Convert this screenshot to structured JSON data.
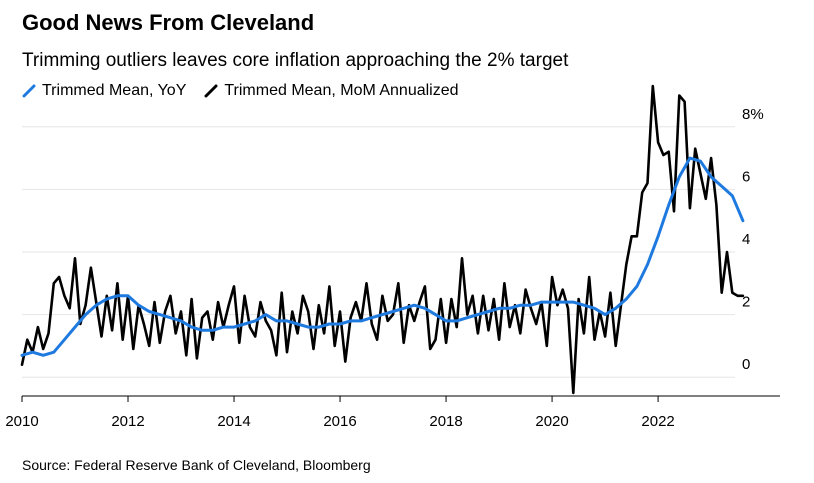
{
  "title": "Good News From Cleveland",
  "subtitle": "Trimming outliers leaves core inflation approaching the 2% target",
  "source": "Source: Federal Reserve Bank of Cleveland, Bloomberg",
  "colors": {
    "yoy": "#1f7ae0",
    "mom": "#000000",
    "grid": "#e6e6e6"
  },
  "chart_data": {
    "type": "line",
    "grid": true,
    "y_axis_side": "right",
    "xlim": [
      2010,
      2024.3
    ],
    "ylim": [
      -0.6,
      8.6
    ],
    "x_ticks": [
      2010,
      2012,
      2014,
      2016,
      2018,
      2020,
      2022
    ],
    "x_tick_labels": [
      "2010",
      "2012",
      "2014",
      "2016",
      "2018",
      "2020",
      "2022"
    ],
    "y_ticks": [
      0,
      2,
      4,
      6,
      8
    ],
    "y_tick_labels": [
      "0",
      "2",
      "4",
      "6",
      "8%"
    ],
    "series": [
      {
        "name": "Trimmed Mean, YoY",
        "color": "#1f7ae0",
        "x": [
          2010.0,
          2010.2,
          2010.4,
          2010.6,
          2010.8,
          2011.0,
          2011.2,
          2011.4,
          2011.6,
          2011.8,
          2012.0,
          2012.2,
          2012.4,
          2012.6,
          2012.8,
          2013.0,
          2013.2,
          2013.4,
          2013.6,
          2013.8,
          2014.0,
          2014.2,
          2014.4,
          2014.6,
          2014.8,
          2015.0,
          2015.2,
          2015.4,
          2015.6,
          2015.8,
          2016.0,
          2016.2,
          2016.4,
          2016.6,
          2016.8,
          2017.0,
          2017.2,
          2017.4,
          2017.6,
          2017.8,
          2018.0,
          2018.2,
          2018.4,
          2018.6,
          2018.8,
          2019.0,
          2019.2,
          2019.4,
          2019.6,
          2019.8,
          2020.0,
          2020.2,
          2020.4,
          2020.6,
          2020.8,
          2021.0,
          2021.2,
          2021.4,
          2021.6,
          2021.8,
          2022.0,
          2022.2,
          2022.4,
          2022.6,
          2022.8,
          2023.0,
          2023.2,
          2023.4,
          2023.6
        ],
        "values": [
          0.7,
          0.8,
          0.7,
          0.8,
          1.2,
          1.6,
          2.0,
          2.3,
          2.5,
          2.6,
          2.6,
          2.3,
          2.1,
          2.0,
          1.9,
          1.8,
          1.6,
          1.5,
          1.5,
          1.6,
          1.6,
          1.7,
          1.8,
          2.0,
          1.8,
          1.8,
          1.7,
          1.6,
          1.6,
          1.7,
          1.7,
          1.8,
          1.8,
          1.9,
          2.0,
          2.1,
          2.2,
          2.3,
          2.2,
          2.0,
          1.8,
          1.8,
          1.9,
          2.0,
          2.1,
          2.2,
          2.2,
          2.3,
          2.3,
          2.4,
          2.4,
          2.4,
          2.4,
          2.3,
          2.2,
          2.0,
          2.2,
          2.5,
          2.9,
          3.6,
          4.5,
          5.5,
          6.4,
          7.0,
          6.9,
          6.4,
          6.1,
          5.8,
          5.0
        ]
      },
      {
        "name": "Trimmed Mean, MoM Annualized",
        "color": "#000000",
        "x": [
          2010.0,
          2010.1,
          2010.2,
          2010.3,
          2010.4,
          2010.5,
          2010.6,
          2010.7,
          2010.8,
          2010.9,
          2011.0,
          2011.1,
          2011.2,
          2011.3,
          2011.4,
          2011.5,
          2011.6,
          2011.7,
          2011.8,
          2011.9,
          2012.0,
          2012.1,
          2012.2,
          2012.3,
          2012.4,
          2012.5,
          2012.6,
          2012.7,
          2012.8,
          2012.9,
          2013.0,
          2013.1,
          2013.2,
          2013.3,
          2013.4,
          2013.5,
          2013.6,
          2013.7,
          2013.8,
          2013.9,
          2014.0,
          2014.1,
          2014.2,
          2014.3,
          2014.4,
          2014.5,
          2014.6,
          2014.7,
          2014.8,
          2014.9,
          2015.0,
          2015.1,
          2015.2,
          2015.3,
          2015.4,
          2015.5,
          2015.6,
          2015.7,
          2015.8,
          2015.9,
          2016.0,
          2016.1,
          2016.2,
          2016.3,
          2016.4,
          2016.5,
          2016.6,
          2016.7,
          2016.8,
          2016.9,
          2017.0,
          2017.1,
          2017.2,
          2017.3,
          2017.4,
          2017.5,
          2017.6,
          2017.7,
          2017.8,
          2017.9,
          2018.0,
          2018.1,
          2018.2,
          2018.3,
          2018.4,
          2018.5,
          2018.6,
          2018.7,
          2018.8,
          2018.9,
          2019.0,
          2019.1,
          2019.2,
          2019.3,
          2019.4,
          2019.5,
          2019.6,
          2019.7,
          2019.8,
          2019.9,
          2020.0,
          2020.1,
          2020.2,
          2020.3,
          2020.4,
          2020.5,
          2020.6,
          2020.7,
          2020.8,
          2020.9,
          2021.0,
          2021.1,
          2021.2,
          2021.3,
          2021.4,
          2021.5,
          2021.6,
          2021.7,
          2021.8,
          2021.9,
          2022.0,
          2022.1,
          2022.2,
          2022.3,
          2022.4,
          2022.5,
          2022.6,
          2022.7,
          2022.8,
          2022.9,
          2023.0,
          2023.1,
          2023.2,
          2023.3,
          2023.4,
          2023.5,
          2023.6
        ],
        "values": [
          0.4,
          1.2,
          0.8,
          1.6,
          0.9,
          1.4,
          3.0,
          3.2,
          2.6,
          2.2,
          3.8,
          1.7,
          2.3,
          3.5,
          2.4,
          1.3,
          2.6,
          1.5,
          3.0,
          1.2,
          2.6,
          0.9,
          2.3,
          1.7,
          1.0,
          2.4,
          1.1,
          2.1,
          2.6,
          1.4,
          2.1,
          0.7,
          2.5,
          0.6,
          1.9,
          2.1,
          1.2,
          2.4,
          1.6,
          2.3,
          2.9,
          1.1,
          2.6,
          1.6,
          1.3,
          2.4,
          1.8,
          1.5,
          0.7,
          2.7,
          0.8,
          2.1,
          1.4,
          2.6,
          2.1,
          0.9,
          2.3,
          1.4,
          2.9,
          1.0,
          2.1,
          0.5,
          1.9,
          2.4,
          1.8,
          3.0,
          1.7,
          1.2,
          2.6,
          1.8,
          2.0,
          3.0,
          1.1,
          2.3,
          1.8,
          2.4,
          2.9,
          0.9,
          1.2,
          2.5,
          1.1,
          2.5,
          1.6,
          3.8,
          2.0,
          2.6,
          1.4,
          2.6,
          1.5,
          2.5,
          1.2,
          3.0,
          1.6,
          2.3,
          1.4,
          2.8,
          2.2,
          1.7,
          2.4,
          1.0,
          3.2,
          2.3,
          2.8,
          2.2,
          -0.5,
          2.5,
          1.4,
          3.2,
          1.2,
          2.1,
          1.3,
          2.7,
          1.0,
          2.3,
          3.6,
          4.5,
          4.5,
          5.9,
          6.2,
          9.3,
          7.5,
          7.1,
          7.2,
          5.3,
          9.0,
          8.8,
          5.4,
          7.3,
          6.5,
          5.7,
          7.0,
          5.5,
          2.7,
          4.0,
          2.7,
          2.6,
          2.6
        ]
      }
    ]
  }
}
